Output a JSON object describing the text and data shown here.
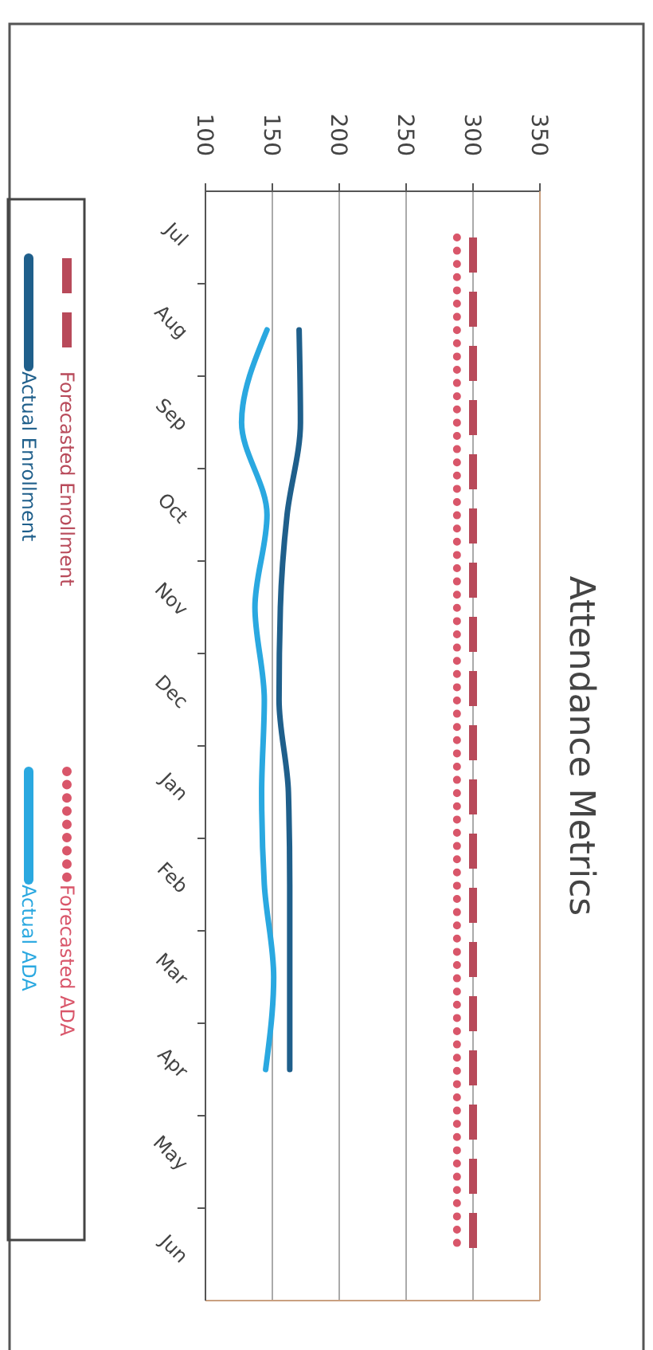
{
  "chart_data": {
    "type": "line",
    "title": "Attendance Metrics",
    "categories": [
      "Jul",
      "Aug",
      "Sep",
      "Oct",
      "Nov",
      "Dec",
      "Jan",
      "Feb",
      "Mar",
      "Apr",
      "May",
      "Jun"
    ],
    "series": [
      {
        "name": "Forecasted Enrollment",
        "color": "#b84a5a",
        "line_style": "dashed",
        "values": [
          300,
          300,
          300,
          300,
          300,
          300,
          300,
          300,
          300,
          300,
          300,
          300
        ]
      },
      {
        "name": "Actual Enrollment",
        "color": "#1f5f8b",
        "line_style": "solid",
        "values": [
          null,
          170,
          171,
          161,
          156,
          155,
          162,
          163,
          163,
          163,
          null,
          null
        ]
      },
      {
        "name": "Forecasted ADA",
        "color": "#d9566a",
        "line_style": "dotted",
        "values": [
          288,
          288,
          288,
          288,
          288,
          288,
          288,
          288,
          288,
          288,
          288,
          288
        ]
      },
      {
        "name": "Actual ADA",
        "color": "#2aa8e0",
        "line_style": "solid",
        "values": [
          null,
          146,
          127,
          146,
          137,
          144,
          142,
          144,
          151,
          145,
          null,
          null
        ]
      }
    ],
    "orientation": "horizontal",
    "xlim": [
      100,
      350
    ],
    "xticks": [
      100,
      150,
      200,
      250,
      300,
      350
    ],
    "grid": "x",
    "legend": "left",
    "marker": "none"
  }
}
